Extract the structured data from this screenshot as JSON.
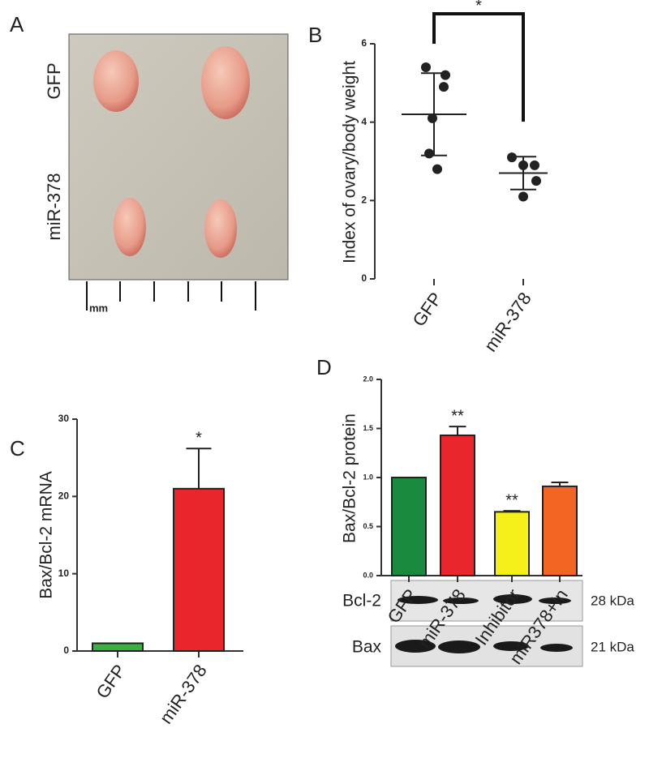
{
  "photo": {
    "panel_label": "A",
    "row_labels": [
      "GFP",
      "miR-378"
    ],
    "scale_label": "mm"
  },
  "blots": {
    "rows": [
      {
        "name": "Bcl-2",
        "size": "28 kDa"
      },
      {
        "name": "Bax",
        "size": "21 kDa"
      }
    ]
  },
  "chart_data": [
    {
      "type": "scatter",
      "panel_label": "B",
      "y_label": "Index of ovary/body weight",
      "categories": [
        "GFP",
        "miR-378"
      ],
      "points": [
        [
          5.4,
          5.2,
          4.9,
          4.1,
          3.2,
          2.8
        ],
        [
          3.1,
          2.9,
          2.9,
          2.5,
          2.1
        ]
      ],
      "means": [
        4.2,
        2.7
      ],
      "errors": [
        1.05,
        0.42
      ],
      "annotation": "*",
      "color": "#222222",
      "ylim": [
        0,
        6
      ],
      "yticks": [
        0,
        2,
        4,
        6
      ]
    },
    {
      "type": "bar",
      "panel_label": "C",
      "y_label": "Bax/Bcl-2 mRNA",
      "categories": [
        "GFP",
        "miR-378"
      ],
      "values": [
        1,
        21
      ],
      "errors": [
        0,
        5.2
      ],
      "significance": [
        null,
        "*"
      ],
      "colors": [
        "#3cb043",
        "#e8262b"
      ],
      "ylim": [
        0,
        30
      ],
      "yticks": [
        0,
        10,
        20,
        30
      ]
    },
    {
      "type": "bar",
      "panel_label": "D",
      "y_label": "Bax/Bcl-2 protein",
      "categories": [
        "GFP",
        "miR-378",
        "Inhibitor",
        "miR378+In"
      ],
      "values": [
        1.0,
        1.43,
        0.65,
        0.91
      ],
      "errors": [
        0,
        0.09,
        0.01,
        0.04
      ],
      "significance": [
        null,
        "**",
        "**",
        null
      ],
      "colors": [
        "#1a8a3e",
        "#e8262b",
        "#f5ef1a",
        "#f26522"
      ],
      "ylim": [
        0,
        2
      ],
      "yticks": [
        {
          "value": 0,
          "label": "0.0"
        },
        {
          "value": 0.5,
          "label": "0.5"
        },
        {
          "value": 1,
          "label": "1.0"
        },
        {
          "value": 1.5,
          "label": "1.5"
        },
        {
          "value": 2,
          "label": "2.0"
        }
      ]
    }
  ]
}
